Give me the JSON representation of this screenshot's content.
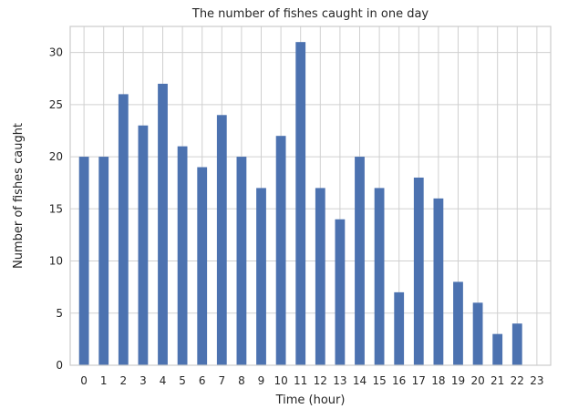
{
  "chart_data": {
    "type": "bar",
    "title": "The number of fishes caught in one day",
    "xlabel": "Time (hour)",
    "ylabel": "Number of fishes caught",
    "categories": [
      "0",
      "1",
      "2",
      "3",
      "4",
      "5",
      "6",
      "7",
      "8",
      "9",
      "10",
      "11",
      "12",
      "13",
      "14",
      "15",
      "16",
      "17",
      "18",
      "19",
      "20",
      "21",
      "22",
      "23"
    ],
    "values": [
      20,
      20,
      26,
      23,
      27,
      21,
      19,
      24,
      20,
      17,
      22,
      31,
      17,
      14,
      20,
      17,
      7,
      18,
      16,
      8,
      6,
      3,
      4,
      0
    ],
    "ylim": [
      0,
      32.5
    ],
    "yticks": [
      0,
      5,
      10,
      15,
      20,
      25,
      30
    ],
    "grid": true,
    "bar_color": "#4c72b0",
    "grid_color": "#d0d0d0"
  }
}
